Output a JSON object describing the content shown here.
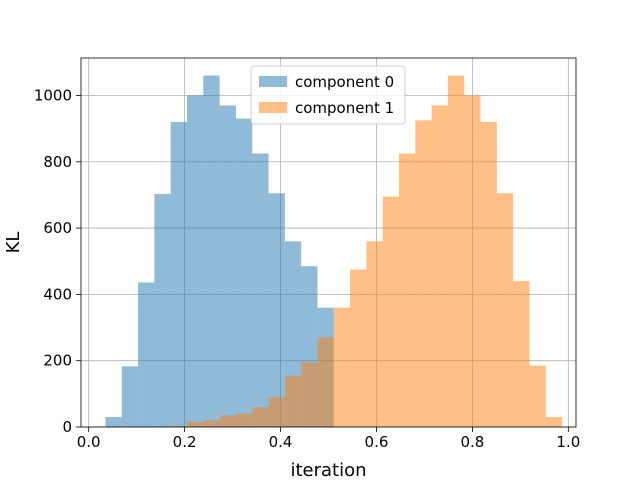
{
  "chart_data": {
    "type": "bar",
    "title": "",
    "xlabel": "iteration",
    "ylabel": "KL",
    "xlim": [
      -0.016,
      1.016
    ],
    "ylim": [
      0,
      1113
    ],
    "grid": true,
    "legend_position": "top-center",
    "xticks": [
      0.0,
      0.2,
      0.4,
      0.6,
      0.8,
      1.0
    ],
    "xtick_labels": [
      "0.0",
      "0.2",
      "0.4",
      "0.6",
      "0.8",
      "1.0"
    ],
    "yticks": [
      0,
      200,
      400,
      600,
      800,
      1000
    ],
    "ytick_labels": [
      "0",
      "200",
      "400",
      "600",
      "800",
      "1000"
    ],
    "series": [
      {
        "name": "component 0",
        "color": "#1f77b4",
        "alpha": 0.5,
        "bins": [
          {
            "x0": 0.035,
            "x1": 0.069,
            "count": 30
          },
          {
            "x0": 0.069,
            "x1": 0.103,
            "count": 183
          },
          {
            "x0": 0.103,
            "x1": 0.137,
            "count": 436
          },
          {
            "x0": 0.137,
            "x1": 0.171,
            "count": 703
          },
          {
            "x0": 0.171,
            "x1": 0.205,
            "count": 920
          },
          {
            "x0": 0.205,
            "x1": 0.239,
            "count": 1000
          },
          {
            "x0": 0.239,
            "x1": 0.273,
            "count": 1060
          },
          {
            "x0": 0.273,
            "x1": 0.307,
            "count": 970
          },
          {
            "x0": 0.307,
            "x1": 0.341,
            "count": 930
          },
          {
            "x0": 0.341,
            "x1": 0.375,
            "count": 825
          },
          {
            "x0": 0.375,
            "x1": 0.409,
            "count": 705
          },
          {
            "x0": 0.409,
            "x1": 0.443,
            "count": 560
          },
          {
            "x0": 0.443,
            "x1": 0.477,
            "count": 485
          },
          {
            "x0": 0.477,
            "x1": 0.511,
            "count": 360
          }
        ]
      },
      {
        "name": "component 1",
        "color": "#ff7f0e",
        "alpha": 0.5,
        "bins": [
          {
            "x0": 0.171,
            "x1": 0.205,
            "count": 3
          },
          {
            "x0": 0.205,
            "x1": 0.239,
            "count": 15
          },
          {
            "x0": 0.239,
            "x1": 0.273,
            "count": 20
          },
          {
            "x0": 0.273,
            "x1": 0.307,
            "count": 35
          },
          {
            "x0": 0.307,
            "x1": 0.341,
            "count": 40
          },
          {
            "x0": 0.341,
            "x1": 0.375,
            "count": 60
          },
          {
            "x0": 0.375,
            "x1": 0.409,
            "count": 90
          },
          {
            "x0": 0.409,
            "x1": 0.443,
            "count": 155
          },
          {
            "x0": 0.443,
            "x1": 0.477,
            "count": 195
          },
          {
            "x0": 0.477,
            "x1": 0.511,
            "count": 270
          },
          {
            "x0": 0.511,
            "x1": 0.545,
            "count": 360
          },
          {
            "x0": 0.545,
            "x1": 0.579,
            "count": 475
          },
          {
            "x0": 0.579,
            "x1": 0.613,
            "count": 560
          },
          {
            "x0": 0.613,
            "x1": 0.647,
            "count": 695
          },
          {
            "x0": 0.647,
            "x1": 0.681,
            "count": 825
          },
          {
            "x0": 0.681,
            "x1": 0.715,
            "count": 925
          },
          {
            "x0": 0.715,
            "x1": 0.749,
            "count": 970
          },
          {
            "x0": 0.749,
            "x1": 0.783,
            "count": 1060
          },
          {
            "x0": 0.783,
            "x1": 0.817,
            "count": 1000
          },
          {
            "x0": 0.817,
            "x1": 0.851,
            "count": 920
          },
          {
            "x0": 0.851,
            "x1": 0.885,
            "count": 705
          },
          {
            "x0": 0.885,
            "x1": 0.919,
            "count": 440
          },
          {
            "x0": 0.919,
            "x1": 0.953,
            "count": 185
          },
          {
            "x0": 0.953,
            "x1": 0.987,
            "count": 30
          }
        ]
      }
    ]
  }
}
